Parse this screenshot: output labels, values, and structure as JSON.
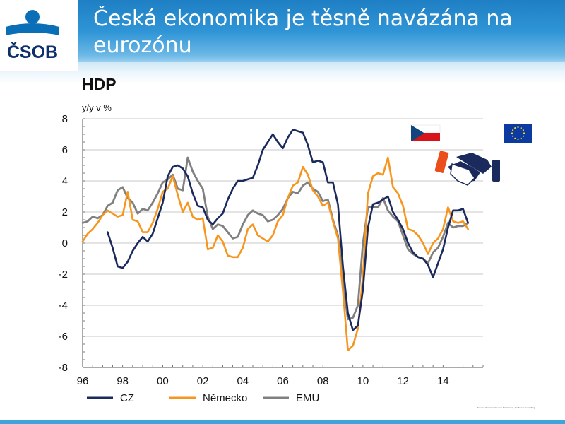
{
  "slide": {
    "title": "Česká ekonomika je těsně navázána na eurozónu",
    "logo_text": "ČSOB",
    "source_note": "Source: Thomson Reuters Datastream, Raiffeisen Consulting"
  },
  "colors": {
    "header": "#1f7fc4",
    "cz": "#1b2a5c",
    "nemecko": "#f7961e",
    "emu": "#808080",
    "logo_blue": "#0a6fb7",
    "logo_dark": "#0d2f6b"
  },
  "icons": [
    "czech-flag-icon",
    "eu-flag-icon",
    "handshake-icon"
  ],
  "chart_data": {
    "type": "line",
    "title": "HDP",
    "ylabel": "y/y v %",
    "ylim": [
      -8,
      8
    ],
    "yticks": [
      "8",
      "6",
      "4",
      "2",
      "0",
      "-2",
      "-4",
      "-6",
      "-8"
    ],
    "xlim": [
      1996,
      2016
    ],
    "xticks": [
      "96",
      "98",
      "00",
      "02",
      "04",
      "06",
      "08",
      "10",
      "12",
      "14"
    ],
    "grid": true,
    "legend_position": "bottom",
    "series": [
      {
        "name": "CZ",
        "x": [
          1997.25,
          1997.5,
          1997.75,
          1998.0,
          1998.25,
          1998.5,
          1998.75,
          1999.0,
          1999.25,
          1999.5,
          1999.75,
          2000.0,
          2000.25,
          2000.5,
          2000.75,
          2001.0,
          2001.25,
          2001.5,
          2001.75,
          2002.0,
          2002.25,
          2002.5,
          2002.75,
          2003.0,
          2003.25,
          2003.5,
          2003.75,
          2004.0,
          2004.25,
          2004.5,
          2004.75,
          2005.0,
          2005.25,
          2005.5,
          2005.75,
          2006.0,
          2006.25,
          2006.5,
          2006.75,
          2007.0,
          2007.25,
          2007.5,
          2007.75,
          2008.0,
          2008.25,
          2008.5,
          2008.75,
          2009.0,
          2009.25,
          2009.5,
          2009.75,
          2010.0,
          2010.25,
          2010.5,
          2010.75,
          2011.0,
          2011.25,
          2011.5,
          2011.75,
          2012.0,
          2012.25,
          2012.5,
          2012.75,
          2013.0,
          2013.25,
          2013.5,
          2013.75,
          2014.0,
          2014.25,
          2014.5,
          2014.75,
          2015.0,
          2015.25
        ],
        "values": [
          0.7,
          -0.3,
          -1.5,
          -1.6,
          -1.2,
          -0.5,
          0.0,
          0.4,
          0.1,
          0.6,
          1.6,
          2.6,
          4.3,
          4.9,
          5.0,
          4.8,
          4.3,
          3.2,
          2.4,
          2.3,
          1.5,
          1.2,
          1.6,
          1.9,
          2.8,
          3.5,
          4.0,
          4.0,
          4.1,
          4.2,
          5.0,
          6.0,
          6.5,
          7.0,
          6.5,
          6.1,
          6.8,
          7.3,
          7.2,
          7.1,
          6.3,
          5.2,
          5.3,
          5.2,
          3.9,
          3.9,
          2.5,
          -1.5,
          -4.5,
          -5.6,
          -5.3,
          -3.0,
          1.0,
          2.5,
          2.6,
          2.8,
          3.0,
          2.0,
          1.5,
          0.9,
          0.0,
          -0.6,
          -0.9,
          -1.0,
          -1.4,
          -2.2,
          -1.3,
          -0.4,
          1.0,
          2.1,
          2.1,
          2.2,
          1.3
        ]
      },
      {
        "name": "Německo",
        "x": [
          1996.0,
          1996.25,
          1996.5,
          1996.75,
          1997.0,
          1997.25,
          1997.5,
          1997.75,
          1998.0,
          1998.25,
          1998.5,
          1998.75,
          1999.0,
          1999.25,
          1999.5,
          1999.75,
          2000.0,
          2000.25,
          2000.5,
          2000.75,
          2001.0,
          2001.25,
          2001.5,
          2001.75,
          2002.0,
          2002.25,
          2002.5,
          2002.75,
          2003.0,
          2003.25,
          2003.5,
          2003.75,
          2004.0,
          2004.25,
          2004.5,
          2004.75,
          2005.0,
          2005.25,
          2005.5,
          2005.75,
          2006.0,
          2006.25,
          2006.5,
          2006.75,
          2007.0,
          2007.25,
          2007.5,
          2007.75,
          2008.0,
          2008.25,
          2008.5,
          2008.75,
          2009.0,
          2009.25,
          2009.5,
          2009.75,
          2010.0,
          2010.25,
          2010.5,
          2010.75,
          2011.0,
          2011.25,
          2011.5,
          2011.75,
          2012.0,
          2012.25,
          2012.5,
          2012.75,
          2013.0,
          2013.25,
          2013.5,
          2013.75,
          2014.0,
          2014.25,
          2014.5,
          2014.75,
          2015.0,
          2015.25
        ],
        "values": [
          0.1,
          0.6,
          0.9,
          1.3,
          1.8,
          2.1,
          1.9,
          1.7,
          1.8,
          3.3,
          1.5,
          1.4,
          0.7,
          0.7,
          1.3,
          2.2,
          3.3,
          3.5,
          4.3,
          3.1,
          2.0,
          2.6,
          1.7,
          1.5,
          1.6,
          -0.4,
          -0.3,
          0.5,
          0.1,
          -0.8,
          -0.9,
          -0.9,
          -0.3,
          0.9,
          1.2,
          0.5,
          0.3,
          0.1,
          0.5,
          1.4,
          1.8,
          2.9,
          3.7,
          3.9,
          4.9,
          4.4,
          3.4,
          3.0,
          2.4,
          2.6,
          1.4,
          0.3,
          -3.1,
          -6.9,
          -6.6,
          -5.5,
          -2.1,
          3.2,
          4.3,
          4.5,
          4.4,
          5.5,
          3.6,
          3.2,
          2.4,
          0.9,
          0.8,
          0.5,
          0.0,
          -0.7,
          0.0,
          0.3,
          0.9,
          2.3,
          1.4,
          1.3,
          1.4,
          0.9
        ]
      },
      {
        "name": "EMU",
        "x": [
          1996.0,
          1996.25,
          1996.5,
          1996.75,
          1997.0,
          1997.25,
          1997.5,
          1997.75,
          1998.0,
          1998.25,
          1998.5,
          1998.75,
          1999.0,
          1999.25,
          1999.5,
          1999.75,
          2000.0,
          2000.25,
          2000.5,
          2000.75,
          2001.0,
          2001.25,
          2001.5,
          2001.75,
          2002.0,
          2002.25,
          2002.5,
          2002.75,
          2003.0,
          2003.25,
          2003.5,
          2003.75,
          2004.0,
          2004.25,
          2004.5,
          2004.75,
          2005.0,
          2005.25,
          2005.5,
          2005.75,
          2006.0,
          2006.25,
          2006.5,
          2006.75,
          2007.0,
          2007.25,
          2007.5,
          2007.75,
          2008.0,
          2008.25,
          2008.5,
          2008.75,
          2009.0,
          2009.25,
          2009.5,
          2009.75,
          2010.0,
          2010.25,
          2010.5,
          2010.75,
          2011.0,
          2011.25,
          2011.5,
          2011.75,
          2012.0,
          2012.25,
          2012.5,
          2012.75,
          2013.0,
          2013.25,
          2013.5,
          2013.75,
          2014.0,
          2014.25,
          2014.5,
          2014.75,
          2015.0,
          2015.25
        ],
        "values": [
          1.3,
          1.4,
          1.7,
          1.6,
          1.8,
          2.4,
          2.6,
          3.4,
          3.6,
          2.9,
          2.6,
          1.9,
          2.2,
          2.1,
          2.6,
          3.2,
          3.9,
          4.1,
          4.4,
          3.5,
          3.4,
          5.5,
          4.6,
          4.0,
          3.5,
          1.7,
          0.9,
          1.2,
          1.1,
          0.7,
          0.3,
          0.4,
          1.2,
          1.8,
          2.1,
          1.9,
          1.8,
          1.4,
          1.5,
          1.8,
          2.2,
          2.9,
          3.3,
          3.2,
          3.7,
          3.9,
          3.5,
          3.3,
          2.7,
          2.8,
          1.5,
          0.5,
          -2.5,
          -4.9,
          -4.8,
          -4.0,
          0.0,
          2.3,
          2.3,
          2.3,
          2.9,
          2.1,
          1.7,
          1.4,
          0.5,
          -0.4,
          -0.7,
          -0.9,
          -1.0,
          -1.3,
          -0.6,
          -0.3,
          0.4,
          1.3,
          1.0,
          1.1,
          1.1,
          1.3
        ]
      }
    ]
  }
}
